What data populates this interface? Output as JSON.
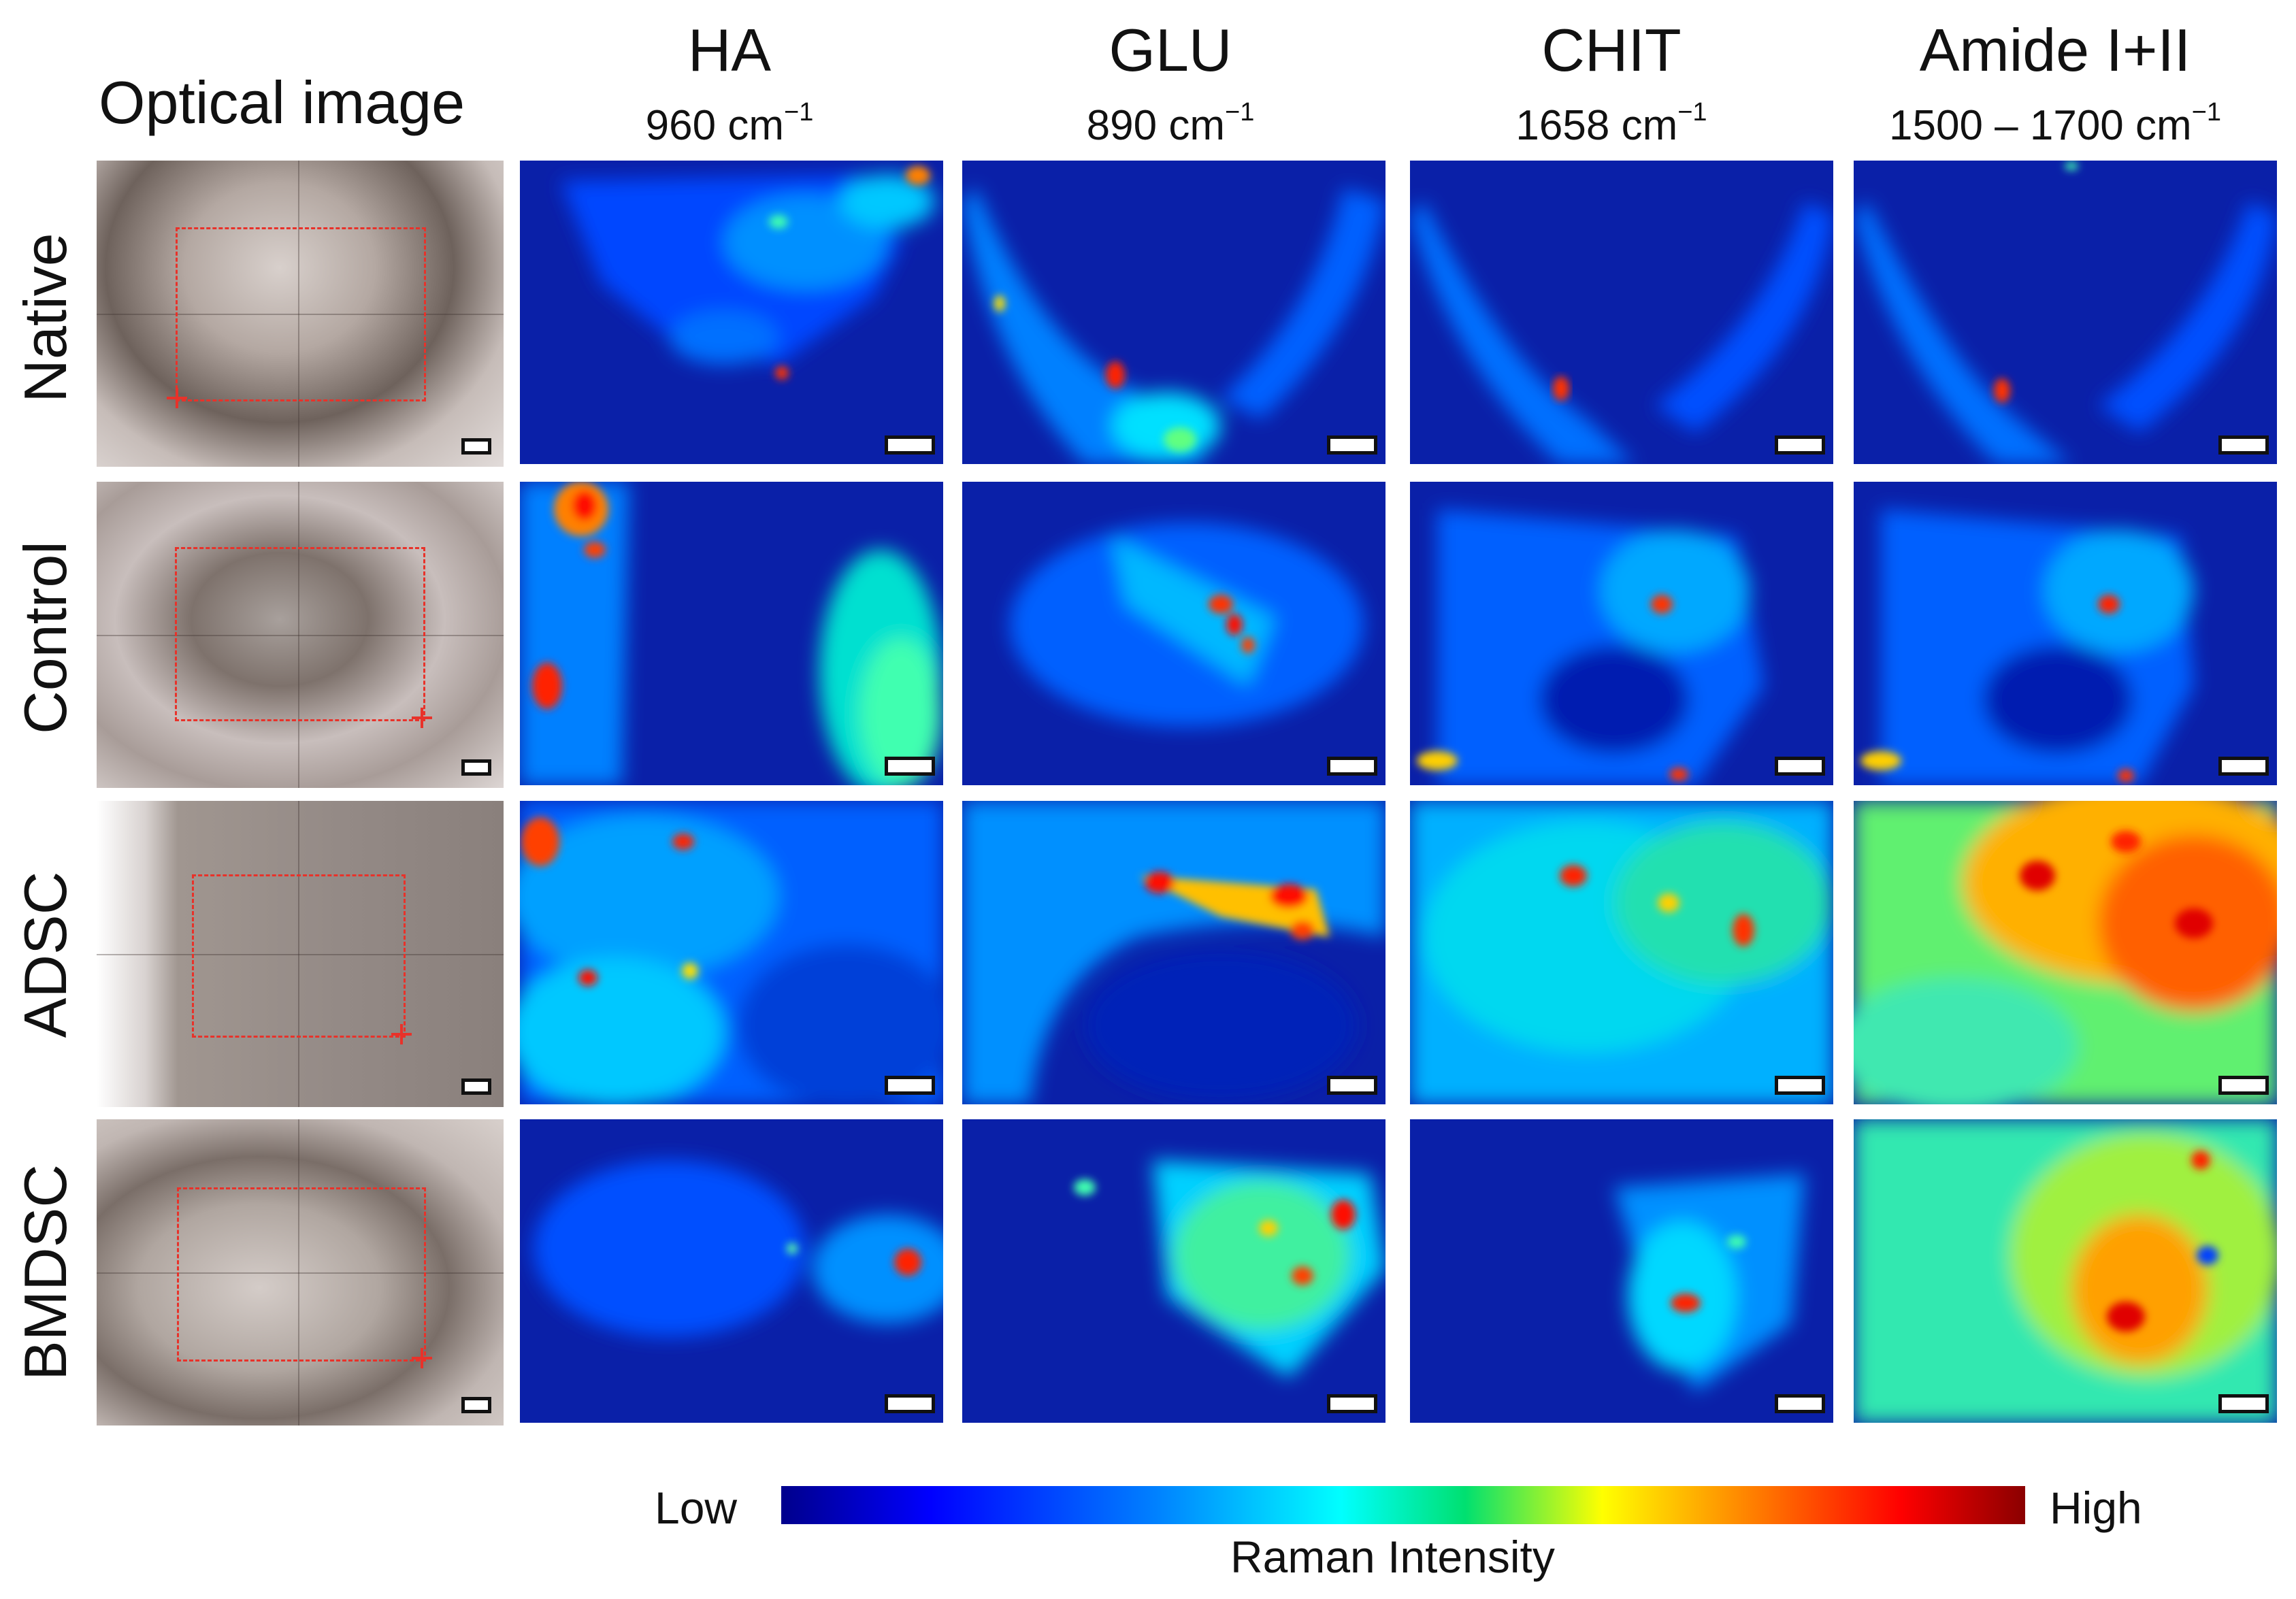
{
  "headers": {
    "optical": "Optical image",
    "ha": {
      "name": "HA",
      "wavenumber": "960 cm",
      "exp": "−1"
    },
    "glu": {
      "name": "GLU",
      "wavenumber": "890 cm",
      "exp": "−1"
    },
    "chit": {
      "name": "CHIT",
      "wavenumber": "1658 cm",
      "exp": "−1"
    },
    "amide": {
      "name": "Amide I+II",
      "wavenumber": "1500 – 1700 cm",
      "exp": "−1"
    }
  },
  "rows": [
    "Native",
    "Control",
    "ADSC",
    "BMDSC"
  ],
  "colorbar": {
    "low": "Low",
    "high": "High",
    "title": "Raman Intensity",
    "colormap": "jet",
    "stops": [
      "#00008c",
      "#0000ff",
      "#0080ff",
      "#00ffff",
      "#00e070",
      "#ffff00",
      "#ff8000",
      "#ff0000",
      "#8b0000"
    ]
  },
  "colors": {
    "roi": "#e8322a",
    "tissue_light": "#d9cfca",
    "tissue_dark": "#7b6e66"
  }
}
